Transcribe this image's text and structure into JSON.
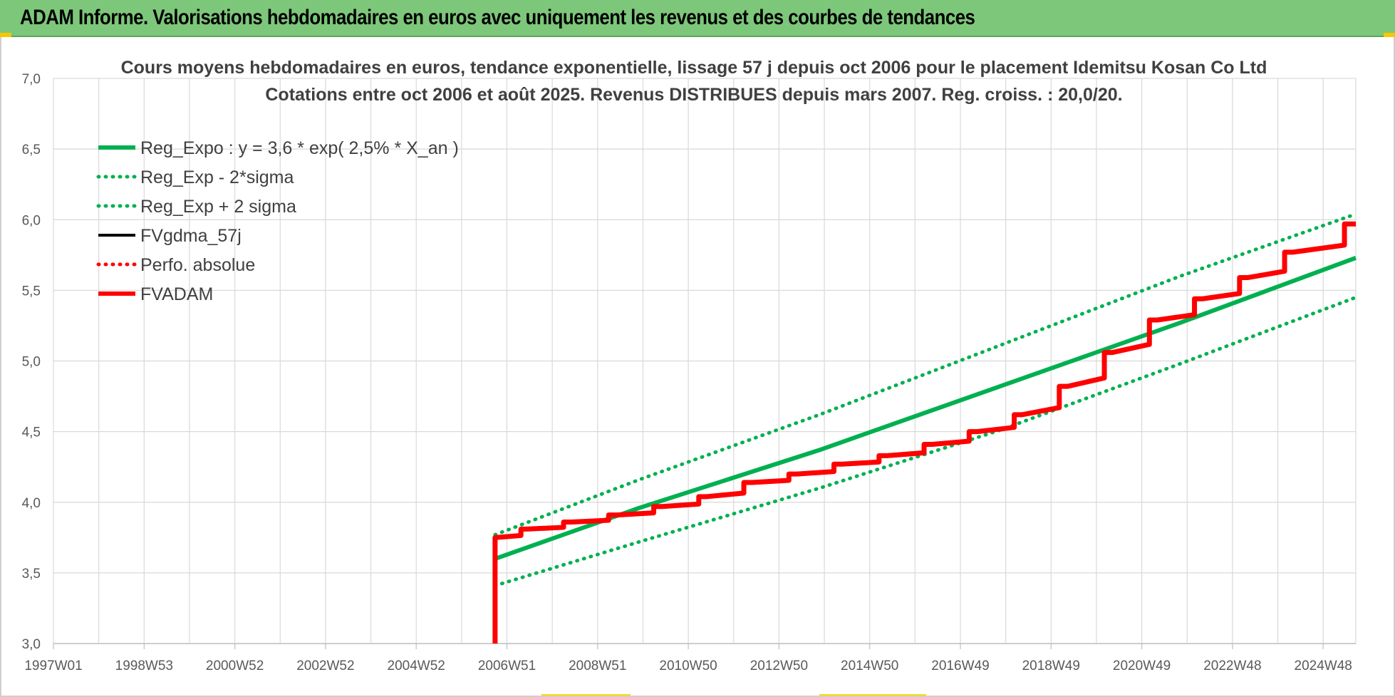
{
  "banner": {
    "title": "ADAM Informe. Valorisations hebdomadaires en euros avec uniquement les revenus et des courbes de tendances"
  },
  "chart_data": {
    "type": "line",
    "title": "Cours moyens hebdomadaires en euros, tendance exponentielle, lissage 57 j depuis oct 2006 pour le placement Idemitsu Kosan Co Ltd",
    "subtitle": "Cotations entre oct 2006 et août 2025. Revenus DISTRIBUES depuis mars 2007. Reg. croiss. : 20,0/20.",
    "xlabel": "",
    "ylabel": "",
    "ylim": [
      3.0,
      7.0
    ],
    "xlim": [
      1997.0,
      2025.9
    ],
    "y_ticks": [
      "3,0",
      "3,5",
      "4,0",
      "4,5",
      "5,0",
      "5,5",
      "6,0",
      "6,5",
      "7,0"
    ],
    "x_tick_labels": [
      "1997W01",
      "1998W53",
      "2000W52",
      "2002W52",
      "2004W52",
      "2006W51",
      "2008W51",
      "2010W50",
      "2012W50",
      "2014W50",
      "2016W49",
      "2018W49",
      "2020W49",
      "2022W48",
      "2024W48"
    ],
    "grid": true,
    "legend_position": "top-left",
    "colors": {
      "green": "#00b050",
      "black": "#000000",
      "red": "#ff0000"
    },
    "series": [
      {
        "name": "Reg_Expo : y = 3,6 * exp( 2,5% *  X_an )",
        "color": "#00b050",
        "style": "solid",
        "x": [
          2006.8,
          2010.0,
          2014.0,
          2018.0,
          2022.0,
          2025.9
        ],
        "y": [
          3.6,
          3.96,
          4.37,
          4.82,
          5.27,
          5.73
        ]
      },
      {
        "name": "Reg_Exp - 2*sigma",
        "color": "#00b050",
        "style": "dotted",
        "x": [
          2006.8,
          2010.0,
          2014.0,
          2018.0,
          2022.0,
          2025.9
        ],
        "y": [
          3.41,
          3.72,
          4.1,
          4.51,
          4.98,
          5.45
        ]
      },
      {
        "name": "Reg_Exp + 2 sigma",
        "color": "#00b050",
        "style": "dotted",
        "x": [
          2006.8,
          2010.0,
          2014.0,
          2018.0,
          2022.0,
          2025.9
        ],
        "y": [
          3.77,
          4.16,
          4.62,
          5.11,
          5.6,
          6.04
        ]
      },
      {
        "name": "FVgdma_57j",
        "color": "#000000",
        "style": "solid",
        "x": [
          2006.8,
          2006.8,
          2007.5,
          2008.5,
          2009.5,
          2010.5,
          2011.5,
          2012.5,
          2013.5,
          2014.5,
          2015.5,
          2016.5,
          2017.5,
          2018.5,
          2019.5,
          2020.5,
          2021.5,
          2022.5,
          2023.5,
          2024.5,
          2025.9
        ],
        "y": [
          3.0,
          3.75,
          3.81,
          3.86,
          3.91,
          3.97,
          4.04,
          4.14,
          4.2,
          4.27,
          4.33,
          4.41,
          4.5,
          4.62,
          4.82,
          5.06,
          5.29,
          5.44,
          5.59,
          5.77,
          5.97
        ]
      },
      {
        "name": "Perfo. absolue",
        "color": "#ff0000",
        "style": "dotted",
        "x": [
          2006.8,
          2025.9
        ],
        "y": [
          3.75,
          5.97
        ]
      },
      {
        "name": "FVADAM",
        "color": "#ff0000",
        "style": "solid-thick",
        "x": [
          2006.8,
          2006.8,
          2007.5,
          2008.5,
          2009.5,
          2010.5,
          2011.5,
          2012.5,
          2013.5,
          2014.5,
          2015.5,
          2016.5,
          2017.5,
          2018.5,
          2019.5,
          2020.5,
          2021.5,
          2022.5,
          2023.5,
          2024.5,
          2025.9
        ],
        "y": [
          3.0,
          3.75,
          3.81,
          3.86,
          3.91,
          3.97,
          4.04,
          4.14,
          4.2,
          4.27,
          4.33,
          4.41,
          4.5,
          4.62,
          4.82,
          5.06,
          5.29,
          5.44,
          5.59,
          5.77,
          5.97
        ]
      }
    ]
  }
}
